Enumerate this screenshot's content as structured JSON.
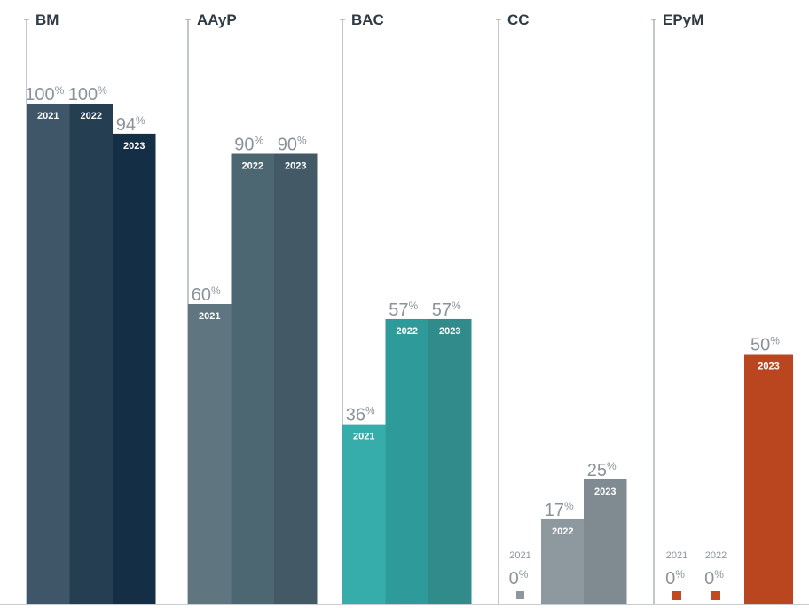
{
  "chart_data": {
    "type": "bar",
    "ylim": [
      0,
      100
    ],
    "unit": "%",
    "groups": [
      {
        "name": "BM",
        "bars": [
          {
            "year": "2021",
            "value": 100,
            "color": "#3f5668"
          },
          {
            "year": "2022",
            "value": 100,
            "color": "#253e52"
          },
          {
            "year": "2023",
            "value": 94,
            "color": "#132e45"
          }
        ]
      },
      {
        "name": "AAyP",
        "bars": [
          {
            "year": "2021",
            "value": 60,
            "color": "#5f7580"
          },
          {
            "year": "2022",
            "value": 90,
            "color": "#4c6672"
          },
          {
            "year": "2023",
            "value": 90,
            "color": "#435a66"
          }
        ]
      },
      {
        "name": "BAC",
        "bars": [
          {
            "year": "2021",
            "value": 36,
            "color": "#36adab"
          },
          {
            "year": "2022",
            "value": 57,
            "color": "#2e9b9a"
          },
          {
            "year": "2023",
            "value": 57,
            "color": "#318b8a"
          }
        ]
      },
      {
        "name": "CC",
        "bars": [
          {
            "year": "2021",
            "value": 0,
            "color": "#8d969c"
          },
          {
            "year": "2022",
            "value": 17,
            "color": "#8d989f"
          },
          {
            "year": "2023",
            "value": 25,
            "color": "#7f8a91"
          }
        ]
      },
      {
        "name": "EPyM",
        "bars": [
          {
            "year": "2021",
            "value": 0,
            "color": "#c24a21"
          },
          {
            "year": "2022",
            "value": 0,
            "color": "#c24a21"
          },
          {
            "year": "2023",
            "value": 50,
            "color": "#b9461f"
          }
        ]
      }
    ],
    "colors": {
      "value_label": "#8b939a",
      "category_label": "#2e3a45",
      "separator_line": "#9aa0a6",
      "baseline": "#c9cdd1"
    }
  }
}
